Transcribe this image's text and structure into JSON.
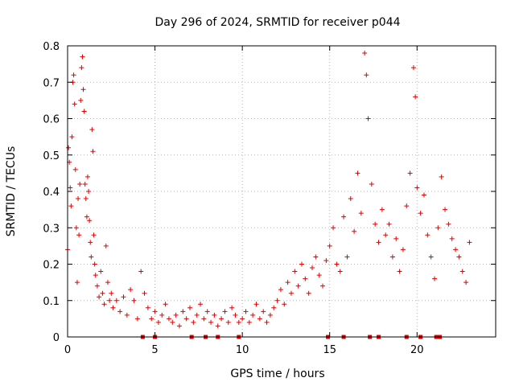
{
  "chart_data": {
    "type": "scatter",
    "title": "Day 296 of 2024, SRMTID for receiver p044",
    "xlabel": "GPS time / hours",
    "ylabel": "SRMTID / TECUs",
    "xlim": [
      0,
      24.5
    ],
    "ylim": [
      0,
      0.8
    ],
    "x_ticks": [
      0,
      5,
      10,
      15,
      20
    ],
    "y_ticks": [
      0,
      0.1,
      0.2,
      0.3,
      0.4,
      0.5,
      0.6,
      0.7,
      0.8
    ],
    "y_tick_labels": [
      "0",
      "0.1",
      "0.2",
      "0.3",
      "0.4",
      "0.5",
      "0.6",
      "0.7",
      "0.8"
    ],
    "grid": true,
    "marker": "+",
    "color": "#e00000",
    "series": [
      {
        "name": "SRMTID",
        "points": [
          [
            0.0,
            0.24
          ],
          [
            0.05,
            0.52
          ],
          [
            0.1,
            0.48
          ],
          [
            0.15,
            0.41
          ],
          [
            0.2,
            0.36
          ],
          [
            0.25,
            0.55
          ],
          [
            0.3,
            0.7
          ],
          [
            0.35,
            0.72
          ],
          [
            0.4,
            0.64
          ],
          [
            0.45,
            0.46
          ],
          [
            0.5,
            0.3
          ],
          [
            0.55,
            0.15
          ],
          [
            0.6,
            0.38
          ],
          [
            0.65,
            0.28
          ],
          [
            0.7,
            0.42
          ],
          [
            0.75,
            0.65
          ],
          [
            0.8,
            0.74
          ],
          [
            0.85,
            0.77
          ],
          [
            0.9,
            0.68
          ],
          [
            0.95,
            0.62
          ],
          [
            1.0,
            0.42
          ],
          [
            1.05,
            0.38
          ],
          [
            1.1,
            0.33
          ],
          [
            1.15,
            0.44
          ],
          [
            1.2,
            0.4
          ],
          [
            1.25,
            0.32
          ],
          [
            1.3,
            0.26
          ],
          [
            1.35,
            0.22
          ],
          [
            1.4,
            0.57
          ],
          [
            1.45,
            0.51
          ],
          [
            1.5,
            0.28
          ],
          [
            1.55,
            0.2
          ],
          [
            1.6,
            0.17
          ],
          [
            1.7,
            0.14
          ],
          [
            1.8,
            0.11
          ],
          [
            1.9,
            0.18
          ],
          [
            2.0,
            0.12
          ],
          [
            2.1,
            0.09
          ],
          [
            2.2,
            0.25
          ],
          [
            2.3,
            0.15
          ],
          [
            2.4,
            0.1
          ],
          [
            2.5,
            0.12
          ],
          [
            2.6,
            0.08
          ],
          [
            2.8,
            0.1
          ],
          [
            3.0,
            0.07
          ],
          [
            3.2,
            0.11
          ],
          [
            3.4,
            0.06
          ],
          [
            3.6,
            0.13
          ],
          [
            3.8,
            0.1
          ],
          [
            4.0,
            0.05
          ],
          [
            4.2,
            0.18
          ],
          [
            4.4,
            0.12
          ],
          [
            4.6,
            0.08
          ],
          [
            4.8,
            0.05
          ],
          [
            5.0,
            0.07
          ],
          [
            5.2,
            0.04
          ],
          [
            5.4,
            0.06
          ],
          [
            5.6,
            0.09
          ],
          [
            5.8,
            0.05
          ],
          [
            6.0,
            0.04
          ],
          [
            6.2,
            0.06
          ],
          [
            6.4,
            0.03
          ],
          [
            6.6,
            0.07
          ],
          [
            6.8,
            0.05
          ],
          [
            7.0,
            0.08
          ],
          [
            7.2,
            0.04
          ],
          [
            7.4,
            0.06
          ],
          [
            7.6,
            0.09
          ],
          [
            7.8,
            0.05
          ],
          [
            8.0,
            0.07
          ],
          [
            8.2,
            0.04
          ],
          [
            8.4,
            0.06
          ],
          [
            8.6,
            0.03
          ],
          [
            8.8,
            0.05
          ],
          [
            9.0,
            0.07
          ],
          [
            9.2,
            0.04
          ],
          [
            9.4,
            0.08
          ],
          [
            9.6,
            0.06
          ],
          [
            9.8,
            0.04
          ],
          [
            10.0,
            0.05
          ],
          [
            10.2,
            0.07
          ],
          [
            10.4,
            0.04
          ],
          [
            10.6,
            0.06
          ],
          [
            10.8,
            0.09
          ],
          [
            11.0,
            0.05
          ],
          [
            11.2,
            0.07
          ],
          [
            11.4,
            0.04
          ],
          [
            11.6,
            0.06
          ],
          [
            11.8,
            0.08
          ],
          [
            12.0,
            0.1
          ],
          [
            12.2,
            0.13
          ],
          [
            12.4,
            0.09
          ],
          [
            12.6,
            0.15
          ],
          [
            12.8,
            0.12
          ],
          [
            13.0,
            0.18
          ],
          [
            13.2,
            0.14
          ],
          [
            13.4,
            0.2
          ],
          [
            13.6,
            0.16
          ],
          [
            13.8,
            0.12
          ],
          [
            14.0,
            0.19
          ],
          [
            14.2,
            0.22
          ],
          [
            14.4,
            0.17
          ],
          [
            14.6,
            0.14
          ],
          [
            14.8,
            0.21
          ],
          [
            15.0,
            0.25
          ],
          [
            15.2,
            0.3
          ],
          [
            15.4,
            0.2
          ],
          [
            15.6,
            0.18
          ],
          [
            15.8,
            0.33
          ],
          [
            16.0,
            0.22
          ],
          [
            16.2,
            0.38
          ],
          [
            16.4,
            0.29
          ],
          [
            16.6,
            0.45
          ],
          [
            16.8,
            0.34
          ],
          [
            17.0,
            0.78
          ],
          [
            17.1,
            0.72
          ],
          [
            17.2,
            0.6
          ],
          [
            17.4,
            0.42
          ],
          [
            17.6,
            0.31
          ],
          [
            17.8,
            0.26
          ],
          [
            18.0,
            0.35
          ],
          [
            18.2,
            0.28
          ],
          [
            18.4,
            0.31
          ],
          [
            18.6,
            0.22
          ],
          [
            18.8,
            0.27
          ],
          [
            19.0,
            0.18
          ],
          [
            19.2,
            0.24
          ],
          [
            19.4,
            0.36
          ],
          [
            19.6,
            0.45
          ],
          [
            19.8,
            0.74
          ],
          [
            19.9,
            0.66
          ],
          [
            20.0,
            0.41
          ],
          [
            20.2,
            0.34
          ],
          [
            20.4,
            0.39
          ],
          [
            20.6,
            0.28
          ],
          [
            20.8,
            0.22
          ],
          [
            21.0,
            0.16
          ],
          [
            21.2,
            0.3
          ],
          [
            21.4,
            0.44
          ],
          [
            21.6,
            0.35
          ],
          [
            21.8,
            0.31
          ],
          [
            22.0,
            0.27
          ],
          [
            22.2,
            0.24
          ],
          [
            22.4,
            0.22
          ],
          [
            22.6,
            0.18
          ],
          [
            22.8,
            0.15
          ],
          [
            23.0,
            0.26
          ]
        ],
        "zero_points": [
          4.3,
          5.0,
          7.1,
          7.9,
          8.6,
          9.8,
          14.9,
          15.8,
          17.3,
          17.8,
          19.4,
          20.2,
          21.1,
          21.3
        ]
      }
    ]
  }
}
